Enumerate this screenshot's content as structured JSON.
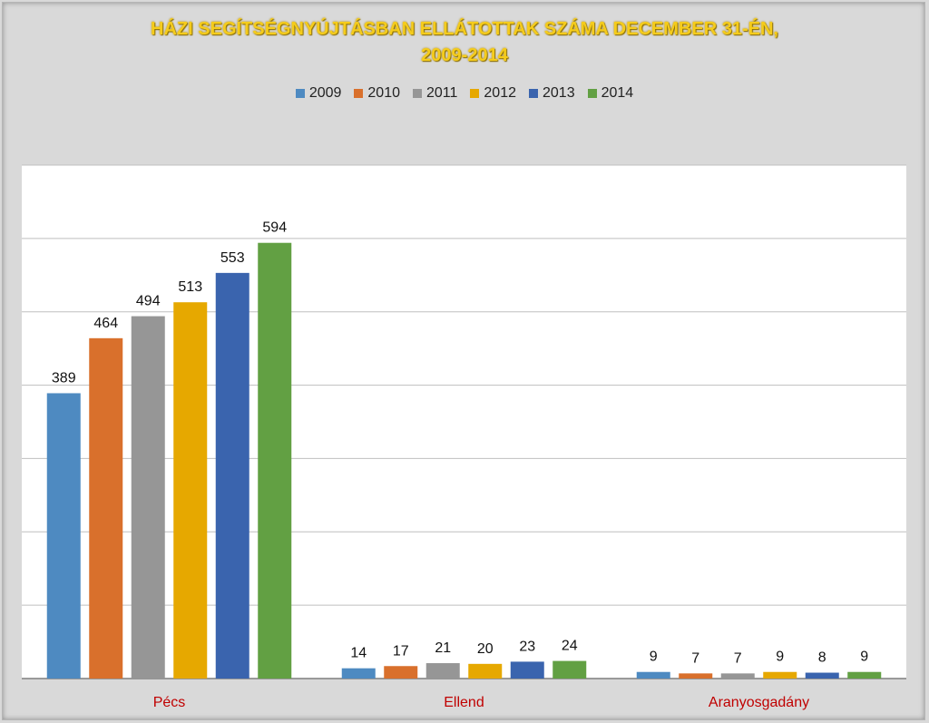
{
  "chart_data": {
    "type": "bar",
    "title_line1": "HÁZI SEGÍTSÉGNYÚJTÁSBAN ELLÁTOTTAK SZÁMA DECEMBER 31-ÉN,",
    "title_line2": "2009-2014",
    "categories": [
      "Pécs",
      "Ellend",
      "Aranyosgadány"
    ],
    "series": [
      {
        "name": "2009",
        "color": "#4e8ac1",
        "values": [
          389,
          14,
          9
        ]
      },
      {
        "name": "2010",
        "color": "#d9702c",
        "values": [
          464,
          17,
          7
        ]
      },
      {
        "name": "2011",
        "color": "#969696",
        "values": [
          494,
          21,
          7
        ]
      },
      {
        "name": "2012",
        "color": "#e6a800",
        "values": [
          513,
          20,
          9
        ]
      },
      {
        "name": "2013",
        "color": "#3a64ae",
        "values": [
          553,
          23,
          8
        ]
      },
      {
        "name": "2014",
        "color": "#62a043",
        "values": [
          594,
          24,
          9
        ]
      }
    ],
    "ylim": [
      0,
      700
    ],
    "grid": true,
    "legend_position": "top",
    "xlabel": "",
    "ylabel": ""
  }
}
